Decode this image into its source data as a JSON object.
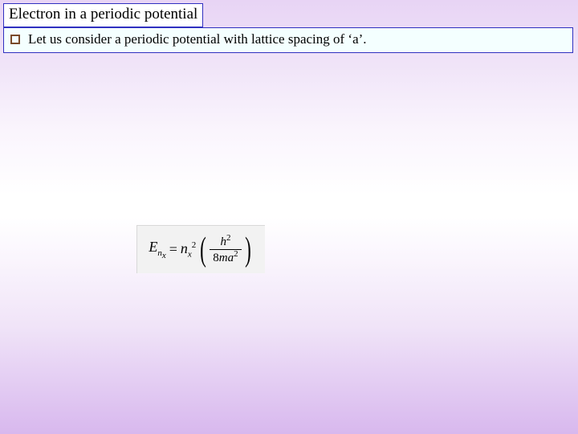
{
  "title": "Electron in a periodic potential",
  "bullet": {
    "text": "Let us consider a periodic potential with lattice spacing of ‘a’."
  },
  "formula": {
    "lhs_base": "E",
    "lhs_sub_outer": "n",
    "lhs_sub_inner": "x",
    "coef_base": "n",
    "coef_sub": "x",
    "coef_sup": "2",
    "num_base": "h",
    "num_sup": "2",
    "den_prefix": "8",
    "den_m": "m",
    "den_a": "a",
    "den_sup": "2"
  },
  "colors": {
    "border": "#3030c0",
    "bullet_border": "#7a4a2a",
    "bullet_bg": "#f4ffff",
    "formula_bg": "#f2f2f2"
  }
}
